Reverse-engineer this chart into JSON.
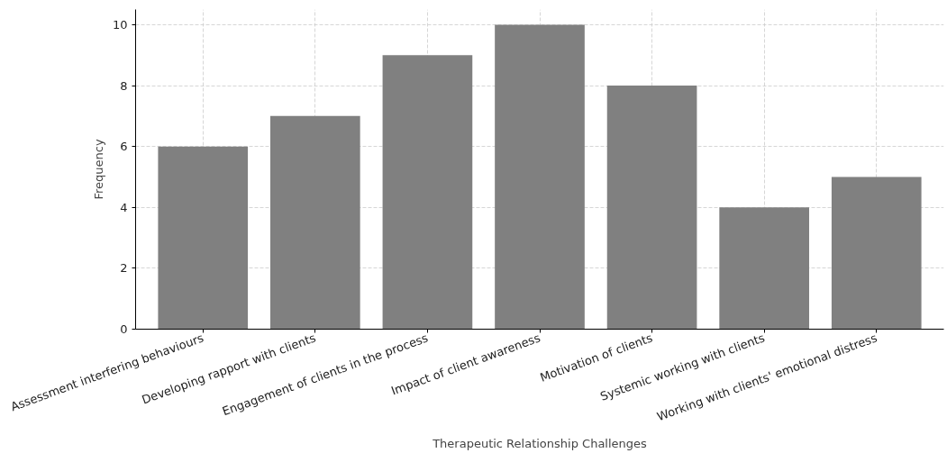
{
  "chart_data": {
    "type": "bar",
    "xlabel": "Therapeutic Relationship Challenges",
    "ylabel": "Frequency",
    "categories": [
      "Assessment interfering behaviours",
      "Developing rapport with clients",
      "Engagement of clients in the process",
      "Impact of client awareness",
      "Motivation of clients",
      "Systemic working with clients",
      "Working with clients' emotional distress"
    ],
    "values": [
      6,
      7,
      9,
      10,
      8,
      4,
      5
    ],
    "color": "#808080",
    "ylim": [
      0,
      10.5
    ],
    "yticks": [
      0,
      2,
      4,
      6,
      8,
      10
    ],
    "grid": true
  }
}
